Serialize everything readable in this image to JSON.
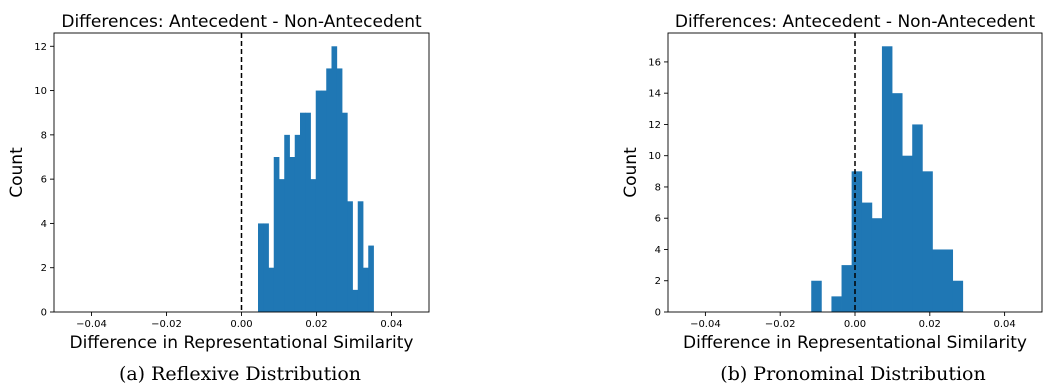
{
  "chart_data": [
    {
      "type": "bar",
      "title": "Differences: Antecedent - Non-Antecedent",
      "xlabel": "Difference in Representational Similarity",
      "ylabel": "Count",
      "caption": "(a) Reflexive Distribution",
      "xlim": [
        -0.05,
        0.05
      ],
      "ylim": [
        0,
        12.6
      ],
      "xticks": [
        -0.04,
        -0.02,
        0.0,
        0.02,
        0.04
      ],
      "xtick_labels": [
        "−0.04",
        "−0.02",
        "0.00",
        "0.02",
        "0.04"
      ],
      "yticks": [
        0,
        2,
        4,
        6,
        8,
        10,
        12
      ],
      "reference_line_x": 0.0,
      "bar_color": "#1f77b4",
      "bin_width": 0.0014,
      "bins": [
        {
          "x0": 0.0044,
          "count": 4
        },
        {
          "x0": 0.0058,
          "count": 4
        },
        {
          "x0": 0.0072,
          "count": 2
        },
        {
          "x0": 0.0086,
          "count": 7
        },
        {
          "x0": 0.01,
          "count": 6
        },
        {
          "x0": 0.0114,
          "count": 8
        },
        {
          "x0": 0.0128,
          "count": 7
        },
        {
          "x0": 0.0142,
          "count": 8
        },
        {
          "x0": 0.0156,
          "count": 9
        },
        {
          "x0": 0.017,
          "count": 9
        },
        {
          "x0": 0.0184,
          "count": 6
        },
        {
          "x0": 0.0198,
          "count": 10
        },
        {
          "x0": 0.0212,
          "count": 10
        },
        {
          "x0": 0.0226,
          "count": 11
        },
        {
          "x0": 0.024,
          "count": 12
        },
        {
          "x0": 0.0254,
          "count": 11
        },
        {
          "x0": 0.0268,
          "count": 9
        },
        {
          "x0": 0.0282,
          "count": 5
        },
        {
          "x0": 0.0296,
          "count": 1
        },
        {
          "x0": 0.031,
          "count": 5
        },
        {
          "x0": 0.0324,
          "count": 2
        },
        {
          "x0": 0.0338,
          "count": 3
        }
      ]
    },
    {
      "type": "bar",
      "title": "Differences: Antecedent - Non-Antecedent",
      "xlabel": "Difference in Representational Similarity",
      "ylabel": "Count",
      "caption": "(b) Pronominal Distribution",
      "xlim": [
        -0.05,
        0.05
      ],
      "ylim": [
        0,
        17.85
      ],
      "xticks": [
        -0.04,
        -0.02,
        0.0,
        0.02,
        0.04
      ],
      "xtick_labels": [
        "−0.04",
        "−0.02",
        "0.00",
        "0.02",
        "0.04"
      ],
      "yticks": [
        0,
        2,
        4,
        6,
        8,
        10,
        12,
        14,
        16
      ],
      "reference_line_x": 0.0,
      "bar_color": "#1f77b4",
      "bin_width": 0.0027,
      "bins": [
        {
          "x0": -0.0117,
          "count": 2
        },
        {
          "x0": -0.009,
          "count": 0
        },
        {
          "x0": -0.0063,
          "count": 1
        },
        {
          "x0": -0.0036,
          "count": 3
        },
        {
          "x0": -0.0009,
          "count": 9
        },
        {
          "x0": 0.0018,
          "count": 7
        },
        {
          "x0": 0.0045,
          "count": 6
        },
        {
          "x0": 0.0072,
          "count": 17
        },
        {
          "x0": 0.0099,
          "count": 14
        },
        {
          "x0": 0.0126,
          "count": 10
        },
        {
          "x0": 0.0153,
          "count": 12
        },
        {
          "x0": 0.018,
          "count": 9
        },
        {
          "x0": 0.0207,
          "count": 4
        },
        {
          "x0": 0.0234,
          "count": 4
        },
        {
          "x0": 0.0261,
          "count": 2
        }
      ]
    }
  ]
}
